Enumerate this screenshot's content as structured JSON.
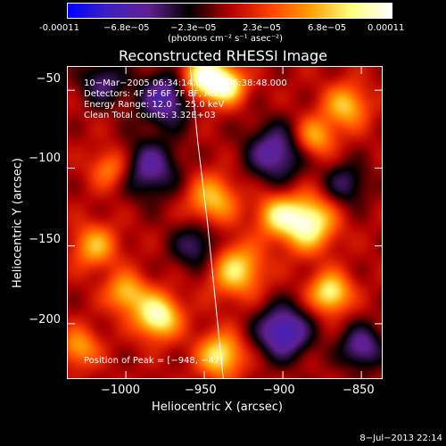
{
  "colorbar": {
    "ticks": [
      "-0.00011",
      "−6.8e−05",
      "−2.3e−05",
      "2.3e−05",
      "6.8e−05",
      "0.00011"
    ],
    "unit": "(photons cm⁻² s⁻¹ asec⁻²)",
    "range": [
      -0.00011,
      0.00011
    ]
  },
  "chart_data": {
    "type": "heatmap",
    "title": "Reconstructed RHESSI Image",
    "xlabel": "Heliocentric X (arcsec)",
    "ylabel": "Heliocentric Y (arcsec)",
    "xlim": [
      -1037,
      -837
    ],
    "ylim": [
      -235,
      -35
    ],
    "xticks": [
      -1000,
      -950,
      -900,
      -850
    ],
    "yticks": [
      -50,
      -100,
      -150,
      -200
    ],
    "xtick_labels": [
      "−1000",
      "−950",
      "−900",
      "−850"
    ],
    "ytick_labels": [
      "−50",
      "−100",
      "−150",
      "−200"
    ],
    "info_lines": [
      "10−Mar−2005 06:34:14.000 to 06:38:48.000",
      "Detectors: 4F 5F 6F 7F 8F, Att 0",
      "Energy Range: 12.0 − 25.0 keV",
      "Clean     Total counts: 3.32E+03"
    ],
    "peak_label": "Position of Peak = [−948, −47]",
    "peak_position": [
      -948,
      -47
    ],
    "colormap": [
      "#0000ff",
      "#4020c0",
      "#602090",
      "#000000",
      "#b00000",
      "#ff4000",
      "#ffa000",
      "#ffff80",
      "#ffffff"
    ],
    "sources": [
      {
        "x": -950,
        "y": -42,
        "amp": 1.0,
        "sigma": 10
      },
      {
        "x": -935,
        "y": -47,
        "amp": 0.7,
        "sigma": 8
      },
      {
        "x": -885,
        "y": -135,
        "amp": 0.95,
        "sigma": 12
      },
      {
        "x": -905,
        "y": -130,
        "amp": 0.55,
        "sigma": 9
      },
      {
        "x": -945,
        "y": -120,
        "amp": 0.6,
        "sigma": 11
      },
      {
        "x": -930,
        "y": -165,
        "amp": 0.7,
        "sigma": 12
      },
      {
        "x": -980,
        "y": -195,
        "amp": 0.9,
        "sigma": 10
      },
      {
        "x": -1000,
        "y": -180,
        "amp": 0.6,
        "sigma": 9
      },
      {
        "x": -870,
        "y": -180,
        "amp": 0.8,
        "sigma": 9
      },
      {
        "x": -860,
        "y": -60,
        "amp": 0.6,
        "sigma": 10
      },
      {
        "x": -880,
        "y": -80,
        "amp": 0.55,
        "sigma": 9
      },
      {
        "x": -1020,
        "y": -150,
        "amp": 0.55,
        "sigma": 10
      },
      {
        "x": -1010,
        "y": -100,
        "amp": 0.45,
        "sigma": 9
      },
      {
        "x": -940,
        "y": -220,
        "amp": 0.75,
        "sigma": 10
      },
      {
        "x": -1030,
        "y": -215,
        "amp": 0.5,
        "sigma": 9
      },
      {
        "x": -975,
        "y": -55,
        "amp": -0.65,
        "sigma": 12
      },
      {
        "x": -985,
        "y": -100,
        "amp": -0.55,
        "sigma": 13
      },
      {
        "x": -905,
        "y": -90,
        "amp": -0.6,
        "sigma": 13
      },
      {
        "x": -900,
        "y": -205,
        "amp": -0.75,
        "sigma": 12
      },
      {
        "x": -955,
        "y": -150,
        "amp": -0.45,
        "sigma": 11
      },
      {
        "x": -850,
        "y": -215,
        "amp": -0.55,
        "sigma": 10
      },
      {
        "x": -1015,
        "y": -45,
        "amp": -0.45,
        "sigma": 10
      },
      {
        "x": -860,
        "y": -110,
        "amp": -0.4,
        "sigma": 10
      }
    ],
    "limb_curve": [
      [
        -959,
        -35
      ],
      [
        -954,
        -85
      ],
      [
        -948,
        -135
      ],
      [
        -943,
        -185
      ],
      [
        -938,
        -235
      ]
    ]
  },
  "footer": "8−Jul−2013 22:14"
}
